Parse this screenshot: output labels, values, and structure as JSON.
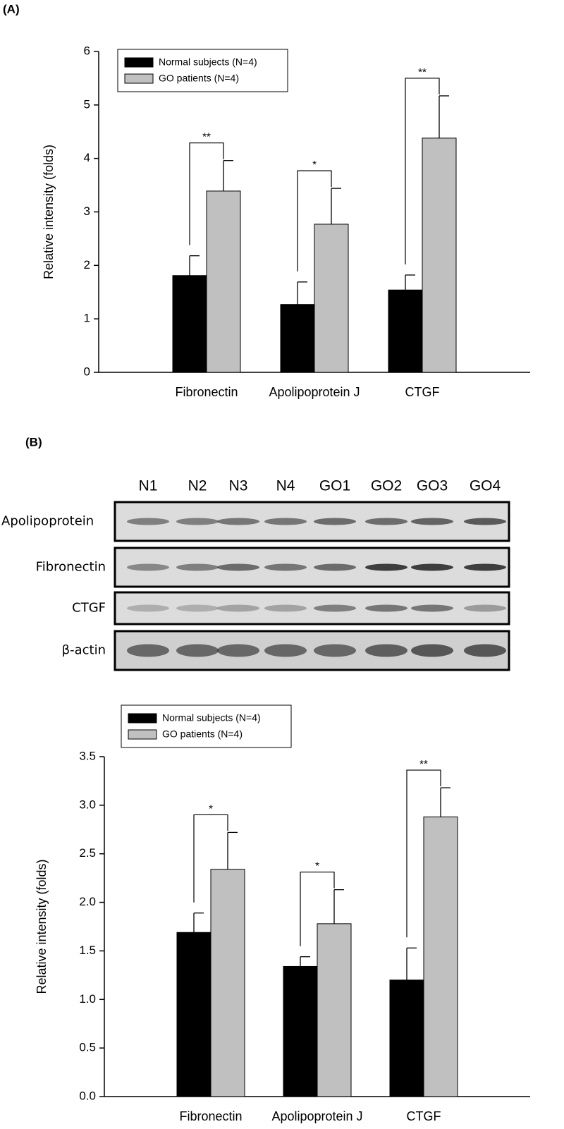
{
  "panels": [
    "(A)",
    "(B)"
  ],
  "blot": {
    "lanes": [
      "N1",
      "N2",
      "N3",
      "N4",
      "GO1",
      "GO2",
      "GO3",
      "GO4"
    ],
    "rows": [
      "Apolipoprotein",
      "Fibronectin",
      "CTGF",
      "β-actin"
    ]
  },
  "chart_data": [
    {
      "type": "bar",
      "y_label": "Relative intensity (folds)",
      "categories": [
        "Fibronectin",
        "Apolipoprotein J",
        "CTGF"
      ],
      "series": [
        {
          "name": "Normal subjects (N=4)",
          "color": "#000000",
          "values": [
            1.81,
            1.27,
            1.54
          ],
          "errors": [
            0.37,
            0.42,
            0.28
          ]
        },
        {
          "name": "GO patients (N=4)",
          "color": "#c0c0c0",
          "values": [
            3.39,
            2.77,
            4.38
          ],
          "errors": [
            0.57,
            0.67,
            0.79
          ]
        }
      ],
      "significance": [
        "**",
        "*",
        "**"
      ],
      "ylim": [
        0,
        6
      ],
      "yticks": [
        0,
        1,
        2,
        3,
        4,
        5,
        6
      ],
      "grid": false,
      "legend": "top-left"
    },
    {
      "type": "bar",
      "y_label": "Relative intensity (folds)",
      "categories": [
        "Fibronectin",
        "Apolipoprotein J",
        "CTGF"
      ],
      "series": [
        {
          "name": "Normal subjects (N=4)",
          "color": "#000000",
          "values": [
            1.69,
            1.34,
            1.2
          ],
          "errors": [
            0.2,
            0.1,
            0.33
          ]
        },
        {
          "name": "GO patients (N=4)",
          "color": "#c0c0c0",
          "values": [
            2.34,
            1.78,
            2.88
          ],
          "errors": [
            0.38,
            0.35,
            0.3
          ]
        }
      ],
      "significance": [
        "*",
        "*",
        "**"
      ],
      "ylim": [
        0,
        3.5
      ],
      "yticks": [
        {
          "value": 0,
          "label": "0.0"
        },
        0.5,
        {
          "value": 1,
          "label": "1.0"
        },
        1.5,
        {
          "value": 2,
          "label": "2.0"
        },
        2.5,
        {
          "value": 3,
          "label": "3.0"
        },
        3.5
      ],
      "grid": false,
      "legend": "top-left"
    }
  ]
}
